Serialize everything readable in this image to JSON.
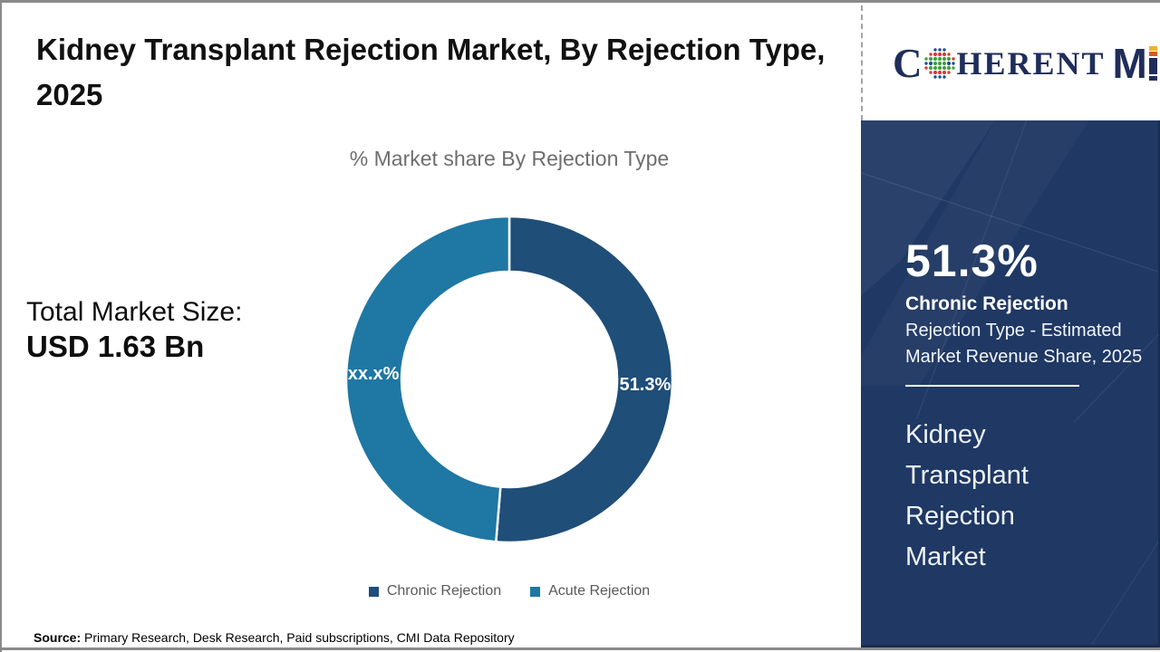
{
  "header": {
    "title": "Kidney Transplant Rejection Market, By Rejection Type, 2025"
  },
  "logo": {
    "c": "C",
    "herent": "HERENT",
    "m": "M",
    "globe_colors": [
      "#1d4f91",
      "#3fa13d",
      "#d93b3b"
    ],
    "navy": "#1f2d5a",
    "orange": "#f6b026",
    "red_orange": "#e2542c"
  },
  "chart_data": {
    "type": "pie",
    "donut": true,
    "title": "% Market share By Rejection Type",
    "categories": [
      "Chronic Rejection",
      "Acute Rejection"
    ],
    "values": [
      51.3,
      48.7
    ],
    "labels": [
      "51.3%",
      "xx.x%"
    ],
    "colors": [
      "#1f4e78",
      "#1f77a3"
    ],
    "legend_position": "bottom",
    "note": "Acute Rejection share is masked as xx.x% in the figure"
  },
  "left_stat": {
    "label": "Total Market Size:",
    "value": "USD 1.63 Bn"
  },
  "panel": {
    "stat_value": "51.3%",
    "stat_label": "Chronic Rejection",
    "stat_desc": "Rejection Type - Estimated Market Revenue Share, 2025",
    "market_name": "Kidney Transplant Rejection Market",
    "background": "#1f3864"
  },
  "source": {
    "label": "Source:",
    "text": " Primary Research, Desk Research, Paid subscriptions, CMI Data Repository"
  }
}
